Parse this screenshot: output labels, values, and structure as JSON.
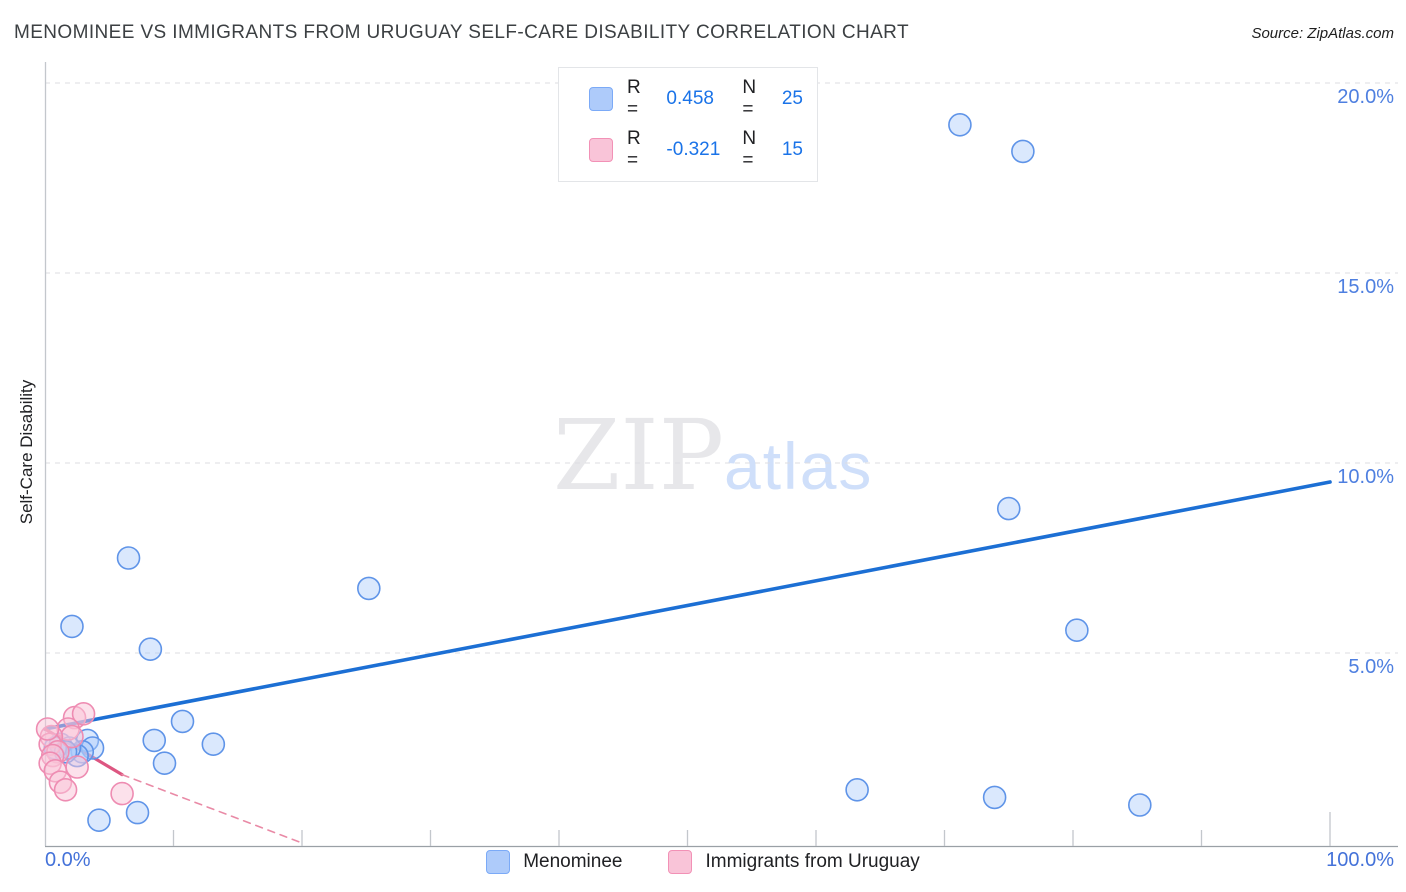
{
  "header": {
    "title": "MENOMINEE VS IMMIGRANTS FROM URUGUAY SELF-CARE DISABILITY CORRELATION CHART",
    "source": "Source: ZipAtlas.com"
  },
  "stats_legend": {
    "rows": [
      {
        "series": "Menominee",
        "r_label": "R =",
        "r_value": "0.458",
        "n_label": "N =",
        "n_value": "25"
      },
      {
        "series": "Immigrants from Uruguay",
        "r_label": "R =",
        "r_value": "-0.321",
        "n_label": "N =",
        "n_value": "15"
      }
    ]
  },
  "axes": {
    "y_label": "Self-Care Disability",
    "y_ticks": [
      {
        "value": 20,
        "label": "20.0%"
      },
      {
        "value": 15,
        "label": "15.0%"
      },
      {
        "value": 10,
        "label": "10.0%"
      },
      {
        "value": 5,
        "label": "5.0%"
      }
    ],
    "x_start_label": "0.0%",
    "x_end_label": "100.0%",
    "x_minor_tick_values": [
      10,
      20,
      30,
      40,
      50,
      60,
      70,
      80,
      90,
      100
    ]
  },
  "watermark": {
    "zip": "ZIP",
    "atlas": "atlas"
  },
  "bottom_legend": [
    {
      "label": "Menominee",
      "fill": "#aecbfa",
      "border": "#7baaf7"
    },
    {
      "label": "Immigrants from Uruguay",
      "fill": "#f9c4d8",
      "border": "#f291b6"
    }
  ],
  "colors": {
    "accent_blue": "#1a73e8",
    "tick_label_blue": "#4e7fe0",
    "gridline": "#dcdde1",
    "axis": "#9aa0a6",
    "menominee_fill": "rgba(174,203,250,0.45)",
    "menominee_stroke": "#5f94e8",
    "uruguay_fill": "rgba(249,196,216,0.5)",
    "uruguay_stroke": "#ee8cb2",
    "trend_blue": "#1c6fd4",
    "trend_pink": "#dd5681",
    "trend_pink_dashed": "#e98aa6"
  },
  "chart_data": {
    "type": "scatter",
    "title": "MENOMINEE VS IMMIGRANTS FROM URUGUAY SELF-CARE DISABILITY CORRELATION CHART",
    "xlabel": "",
    "ylabel": "Self-Care Disability",
    "xlim": [
      0,
      100
    ],
    "ylim": [
      0,
      21
    ],
    "grid": "horizontal-dashed",
    "legend_position": "bottom-center",
    "gridlines_y": [
      5,
      10,
      15,
      20
    ],
    "series": [
      {
        "name": "Menominee",
        "R": 0.458,
        "N": 25,
        "points": [
          [
            2.1,
            5.7
          ],
          [
            6.5,
            7.5
          ],
          [
            8.2,
            5.1
          ],
          [
            25.2,
            6.7
          ],
          [
            71.2,
            18.9
          ],
          [
            76.1,
            18.2
          ],
          [
            75.0,
            8.8
          ],
          [
            80.3,
            5.6
          ],
          [
            63.2,
            1.4
          ],
          [
            73.9,
            1.2
          ],
          [
            85.2,
            1.0
          ],
          [
            4.2,
            0.6
          ],
          [
            7.2,
            0.8
          ],
          [
            10.7,
            3.2
          ],
          [
            8.5,
            2.7
          ],
          [
            13.1,
            2.6
          ],
          [
            9.3,
            2.1
          ],
          [
            3.3,
            2.7
          ],
          [
            3.7,
            2.5
          ],
          [
            2.9,
            2.4
          ],
          [
            2.5,
            2.3
          ],
          [
            1.2,
            2.6
          ],
          [
            1.9,
            2.5
          ],
          [
            0.8,
            2.5
          ],
          [
            1.6,
            2.4
          ]
        ]
      },
      {
        "name": "Immigrants from Uruguay",
        "R": -0.321,
        "N": 15,
        "points": [
          [
            2.3,
            3.3
          ],
          [
            3.0,
            3.4
          ],
          [
            1.8,
            3.0
          ],
          [
            2.1,
            2.8
          ],
          [
            0.5,
            2.8
          ],
          [
            0.4,
            2.6
          ],
          [
            1.0,
            2.4
          ],
          [
            0.6,
            2.3
          ],
          [
            0.4,
            2.1
          ],
          [
            2.5,
            2.0
          ],
          [
            0.8,
            1.9
          ],
          [
            1.2,
            1.6
          ],
          [
            1.6,
            1.4
          ],
          [
            6.0,
            1.3
          ],
          [
            0.2,
            3.0
          ]
        ]
      }
    ],
    "trend_lines": [
      {
        "series": "Menominee",
        "style": "solid",
        "from": [
          0,
          3.0
        ],
        "to": [
          100,
          9.5
        ]
      },
      {
        "series": "Immigrants from Uruguay",
        "style": "solid",
        "from": [
          0,
          3.0
        ],
        "to": [
          6,
          1.8
        ]
      },
      {
        "series": "Immigrants from Uruguay",
        "style": "dashed",
        "from": [
          6,
          1.8
        ],
        "to": [
          20,
          0
        ]
      }
    ]
  }
}
